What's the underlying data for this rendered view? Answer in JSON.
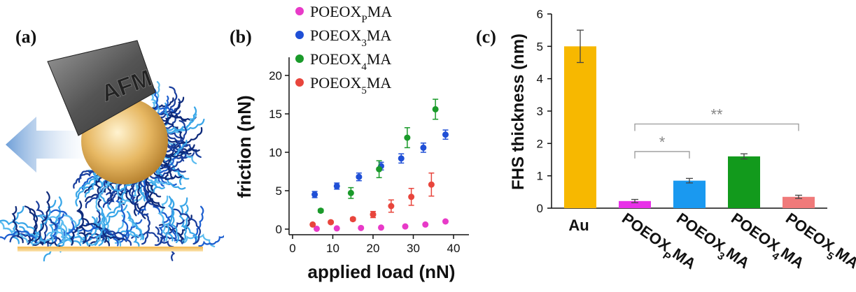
{
  "panels": {
    "a": "(a)",
    "b": "(b)",
    "c": "(c)"
  },
  "illustration": {
    "tip_label": "AFM"
  },
  "chart_data": [
    {
      "type": "scatter",
      "xlabel": "applied load (nN)",
      "ylabel": "friction (nN)",
      "xlim": [
        0,
        40
      ],
      "ylim": [
        0,
        22
      ],
      "xticks": [
        0,
        10,
        20,
        30,
        40
      ],
      "yticks": [
        0,
        5,
        10,
        15,
        20
      ],
      "legend_position": "top",
      "series": [
        {
          "name": "POEOXPMA",
          "name_parts": [
            "POEOX",
            "P",
            "MA"
          ],
          "color": "#e83ac8",
          "points": [
            [
              6,
              0.05
            ],
            [
              11,
              0.1
            ],
            [
              17,
              0.15
            ],
            [
              22,
              0.2
            ],
            [
              28,
              0.35
            ],
            [
              33,
              0.6
            ],
            [
              38,
              1.0
            ]
          ],
          "errors": [
            0.05,
            0.05,
            0.05,
            0.05,
            0.05,
            0.1,
            0.15
          ]
        },
        {
          "name": "POEOX3MA",
          "name_parts": [
            "POEOX",
            "3",
            "MA"
          ],
          "color": "#1f4fd6",
          "points": [
            [
              5.5,
              4.5
            ],
            [
              11,
              5.6
            ],
            [
              16.5,
              6.8
            ],
            [
              22,
              8.2
            ],
            [
              27,
              9.2
            ],
            [
              32.5,
              10.6
            ],
            [
              38,
              12.3
            ]
          ],
          "errors": [
            0.4,
            0.4,
            0.5,
            0.5,
            0.6,
            0.6,
            0.6
          ]
        },
        {
          "name": "POEOX4MA",
          "name_parts": [
            "POEOX",
            "4",
            "MA"
          ],
          "color": "#1a9a2a",
          "points": [
            [
              7,
              2.4
            ],
            [
              14.5,
              4.7
            ],
            [
              21.5,
              7.8
            ],
            [
              28.5,
              11.9
            ],
            [
              35.5,
              15.6
            ]
          ],
          "errors": [
            0.2,
            0.7,
            1.1,
            1.3,
            1.3
          ]
        },
        {
          "name": "POEOX5MA",
          "name_parts": [
            "POEOX",
            "5",
            "MA"
          ],
          "color": "#e8453c",
          "points": [
            [
              5,
              0.6
            ],
            [
              9.5,
              0.9
            ],
            [
              15,
              1.3
            ],
            [
              20,
              1.9
            ],
            [
              24.5,
              3.0
            ],
            [
              29.5,
              4.2
            ],
            [
              34.5,
              5.8
            ]
          ],
          "errors": [
            0.1,
            0.15,
            0.2,
            0.4,
            0.8,
            1.1,
            1.5
          ]
        }
      ]
    },
    {
      "type": "bar",
      "ylabel": "FHS thickness (nm)",
      "ylim": [
        0,
        6
      ],
      "yticks": [
        0,
        1,
        2,
        3,
        4,
        5,
        6
      ],
      "categories": [
        {
          "parts": [
            "Au",
            "",
            ""
          ],
          "value": 5.0,
          "error": 0.5,
          "color": "#f7b800"
        },
        {
          "parts": [
            "POEOX",
            "P",
            "MA"
          ],
          "value": 0.22,
          "error": 0.05,
          "color": "#e830e8"
        },
        {
          "parts": [
            "POEOX",
            "3",
            "MA"
          ],
          "value": 0.85,
          "error": 0.07,
          "color": "#1a99f0"
        },
        {
          "parts": [
            "POEOX",
            "4",
            "MA"
          ],
          "value": 1.6,
          "error": 0.08,
          "color": "#129a1c"
        },
        {
          "parts": [
            "POEOX",
            "5",
            "MA"
          ],
          "value": 0.35,
          "error": 0.05,
          "color": "#f07a7a"
        }
      ],
      "significance": [
        {
          "from": 1,
          "to": 2,
          "label": "*"
        },
        {
          "from": 1,
          "to": 4,
          "label": "**"
        }
      ]
    }
  ]
}
